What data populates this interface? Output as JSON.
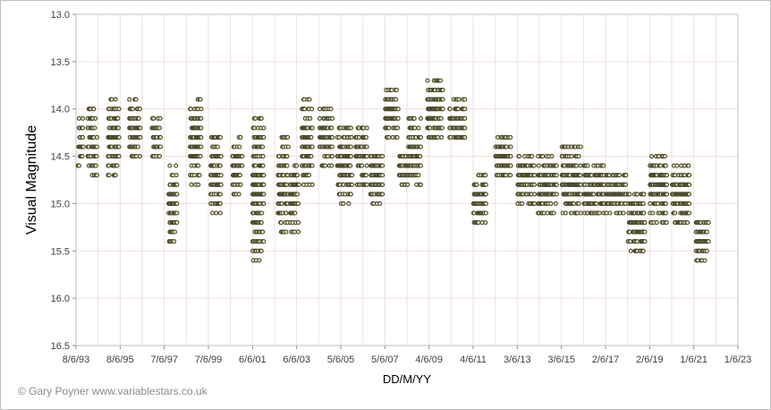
{
  "credit": "© Gary Poyner  www.variablestars.co.uk",
  "chart_data": {
    "type": "scatter",
    "title": "",
    "xlabel": "DD/M/YY",
    "ylabel": "Visual Magnitude",
    "x_axis": "date",
    "xlim": [
      "1993-06-08",
      "2023-06-01"
    ],
    "x_ticks": [
      {
        "date": "1993-06-08",
        "label": "8/6/93"
      },
      {
        "date": "1995-06-08",
        "label": "8/6/95"
      },
      {
        "date": "1997-06-07",
        "label": "7/6/97"
      },
      {
        "date": "1999-06-07",
        "label": "7/6/99"
      },
      {
        "date": "2001-06-06",
        "label": "6/6/01"
      },
      {
        "date": "2003-06-06",
        "label": "6/6/03"
      },
      {
        "date": "2005-06-05",
        "label": "5/6/05"
      },
      {
        "date": "2007-06-05",
        "label": "5/6/07"
      },
      {
        "date": "2009-06-04",
        "label": "4/6/09"
      },
      {
        "date": "2011-06-04",
        "label": "4/6/11"
      },
      {
        "date": "2013-06-03",
        "label": "3/6/13"
      },
      {
        "date": "2015-06-03",
        "label": "3/6/15"
      },
      {
        "date": "2017-06-02",
        "label": "2/6/17"
      },
      {
        "date": "2019-06-02",
        "label": "2/6/19"
      },
      {
        "date": "2021-06-01",
        "label": "1/6/21"
      },
      {
        "date": "2023-06-01",
        "label": "1/6/23"
      }
    ],
    "ylim": [
      13.0,
      16.5
    ],
    "y_reversed": true,
    "y_ticks": [
      "13.0",
      "13.5",
      "14.0",
      "14.5",
      "15.0",
      "15.5",
      "16.0",
      "16.5"
    ],
    "grid": true,
    "marker_color": "#4a4a2a",
    "clusters": [
      {
        "x": [
          "1993-07-10",
          "1993-10-15"
        ],
        "y": [
          14.1,
          14.6
        ]
      },
      {
        "x": [
          "1993-12-20",
          "1994-05-25"
        ],
        "y": [
          14.0,
          14.7
        ]
      },
      {
        "x": [
          "1994-11-20",
          "1995-05-20"
        ],
        "y": [
          13.9,
          14.7
        ]
      },
      {
        "x": [
          "1995-11-10",
          "1996-05-15"
        ],
        "y": [
          13.9,
          14.5
        ]
      },
      {
        "x": [
          "1996-11-15",
          "1997-04-10"
        ],
        "y": [
          14.1,
          14.5
        ]
      },
      {
        "x": [
          "1997-08-20",
          "1998-01-10"
        ],
        "y": [
          14.6,
          15.4
        ]
      },
      {
        "x": [
          "1998-08-10",
          "1999-02-10"
        ],
        "y": [
          13.9,
          14.8
        ]
      },
      {
        "x": [
          "1999-07-15",
          "2000-01-10"
        ],
        "y": [
          14.3,
          15.1
        ]
      },
      {
        "x": [
          "2000-07-10",
          "2000-12-20"
        ],
        "y": [
          14.3,
          14.9
        ]
      },
      {
        "x": [
          "2001-06-10",
          "2001-12-10"
        ],
        "y": [
          14.1,
          15.6
        ]
      },
      {
        "x": [
          "2002-08-01",
          "2003-01-20"
        ],
        "y": [
          14.3,
          15.3
        ]
      },
      {
        "x": [
          "2003-02-20",
          "2003-07-20"
        ],
        "y": [
          14.6,
          15.3
        ]
      },
      {
        "x": [
          "2003-09-01",
          "2004-02-20"
        ],
        "y": [
          13.9,
          14.8
        ]
      },
      {
        "x": [
          "2004-06-20",
          "2005-01-20"
        ],
        "y": [
          14.0,
          14.6
        ]
      },
      {
        "x": [
          "2005-04-10",
          "2005-12-10"
        ],
        "y": [
          14.2,
          15.0
        ]
      },
      {
        "x": [
          "2006-02-10",
          "2006-08-10"
        ],
        "y": [
          14.2,
          14.8
        ]
      },
      {
        "x": [
          "2006-10-10",
          "2007-05-01"
        ],
        "y": [
          14.5,
          15.0
        ]
      },
      {
        "x": [
          "2007-06-10",
          "2008-01-20"
        ],
        "y": [
          13.8,
          14.3
        ]
      },
      {
        "x": [
          "2008-01-25",
          "2008-06-20"
        ],
        "y": [
          14.5,
          14.8
        ]
      },
      {
        "x": [
          "2008-06-25",
          "2009-01-20"
        ],
        "y": [
          14.1,
          14.8
        ]
      },
      {
        "x": [
          "2009-05-10",
          "2010-01-20"
        ],
        "y": [
          13.7,
          14.3
        ]
      },
      {
        "x": [
          "2010-05-10",
          "2011-01-20"
        ],
        "y": [
          13.9,
          14.3
        ]
      },
      {
        "x": [
          "2011-06-10",
          "2012-01-10"
        ],
        "y": [
          14.7,
          15.2
        ]
      },
      {
        "x": [
          "2012-06-10",
          "2013-02-20"
        ],
        "y": [
          14.3,
          14.7
        ]
      },
      {
        "x": [
          "2013-06-10",
          "2014-03-20"
        ],
        "y": [
          14.5,
          15.0
        ]
      },
      {
        "x": [
          "2014-05-15",
          "2015-03-20"
        ],
        "y": [
          14.5,
          15.1
        ]
      },
      {
        "x": [
          "2015-06-10",
          "2016-04-20"
        ],
        "y": [
          14.4,
          15.1
        ]
      },
      {
        "x": [
          "2016-06-10",
          "2017-05-10"
        ],
        "y": [
          14.6,
          15.1
        ]
      },
      {
        "x": [
          "2017-06-10",
          "2018-05-10"
        ],
        "y": [
          14.7,
          15.1
        ]
      },
      {
        "x": [
          "2018-06-10",
          "2019-03-20"
        ],
        "y": [
          14.9,
          15.5
        ]
      },
      {
        "x": [
          "2019-06-10",
          "2020-03-20"
        ],
        "y": [
          14.5,
          15.2
        ]
      },
      {
        "x": [
          "2020-06-10",
          "2021-03-20"
        ],
        "y": [
          14.6,
          15.2
        ]
      },
      {
        "x": [
          "2021-07-10",
          "2022-02-10"
        ],
        "y": [
          15.2,
          15.6
        ]
      }
    ]
  }
}
